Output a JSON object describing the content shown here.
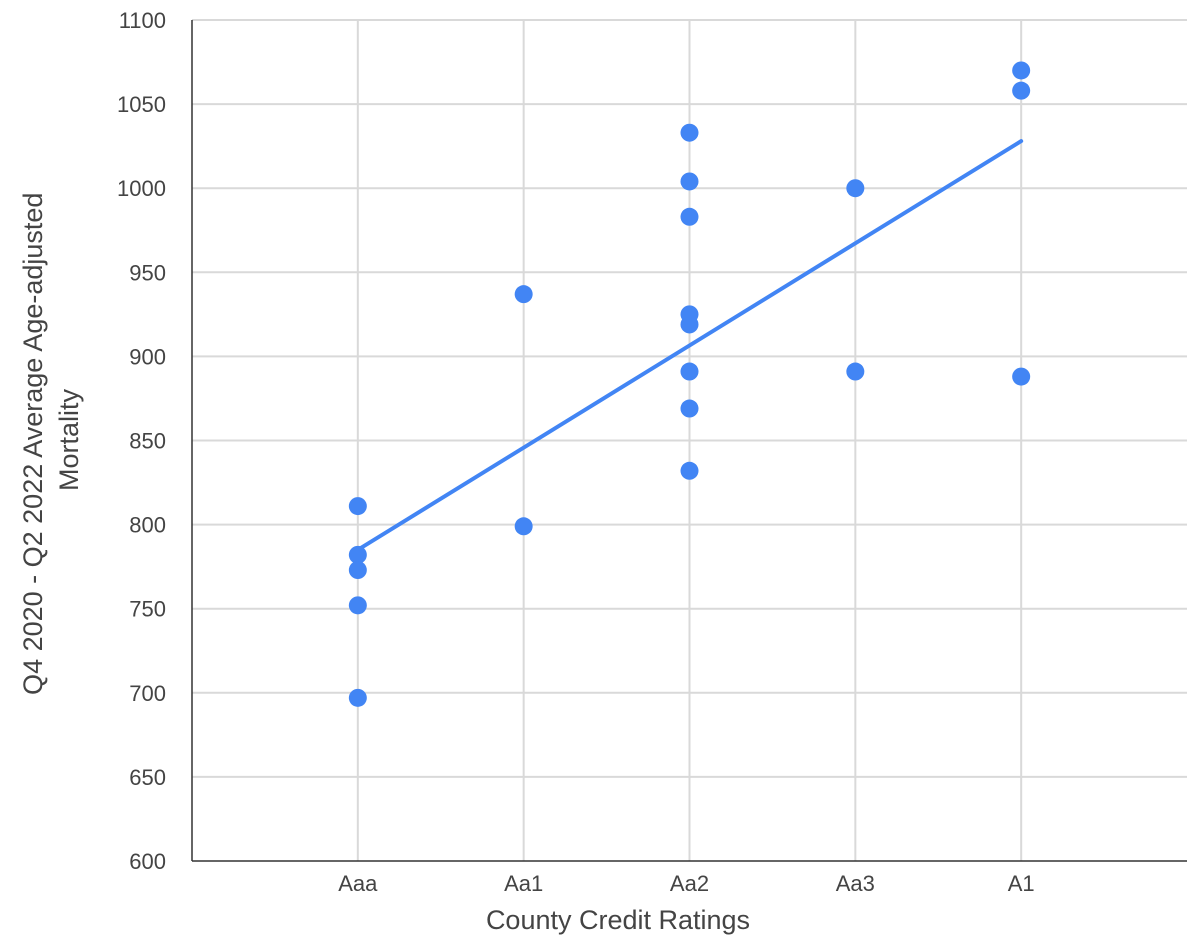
{
  "chart_data": {
    "type": "scatter",
    "title": "",
    "xlabel": "County Credit Ratings",
    "ylabel_lines": [
      "Q4 2020 - Q2 2022 Average Age-adjusted",
      "Mortality"
    ],
    "categories": [
      "Aaa",
      "Aa1",
      "Aa2",
      "Aa3",
      "A1"
    ],
    "ylim": [
      600,
      1100
    ],
    "yticks": [
      "600",
      "650",
      "700",
      "750",
      "800",
      "850",
      "900",
      "950",
      "1000",
      "1050",
      "1100"
    ],
    "grid": true,
    "legend": "none",
    "series": [
      {
        "points": [
          {
            "x": "Aaa",
            "y": 811
          },
          {
            "x": "Aaa",
            "y": 782
          },
          {
            "x": "Aaa",
            "y": 773
          },
          {
            "x": "Aaa",
            "y": 752
          },
          {
            "x": "Aaa",
            "y": 697
          },
          {
            "x": "Aa1",
            "y": 937
          },
          {
            "x": "Aa1",
            "y": 799
          },
          {
            "x": "Aa2",
            "y": 1033
          },
          {
            "x": "Aa2",
            "y": 1004
          },
          {
            "x": "Aa2",
            "y": 983
          },
          {
            "x": "Aa2",
            "y": 925
          },
          {
            "x": "Aa2",
            "y": 919
          },
          {
            "x": "Aa2",
            "y": 891
          },
          {
            "x": "Aa2",
            "y": 869
          },
          {
            "x": "Aa2",
            "y": 832
          },
          {
            "x": "Aa3",
            "y": 1000
          },
          {
            "x": "Aa3",
            "y": 891
          },
          {
            "x": "A1",
            "y": 1070
          },
          {
            "x": "A1",
            "y": 1058
          },
          {
            "x": "A1",
            "y": 888
          }
        ]
      }
    ],
    "trendline": {
      "start": {
        "x": "Aaa",
        "y": 785
      },
      "end": {
        "x": "A1",
        "y": 1028
      }
    },
    "colors": {
      "points": "#4285f4",
      "trendline": "#4285f4",
      "grid": "#d9d9d9",
      "axis": "#333333",
      "text": "#444444"
    }
  }
}
